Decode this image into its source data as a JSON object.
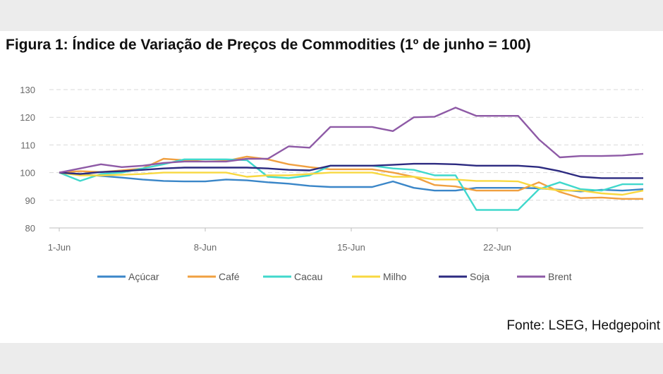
{
  "title": "Figura 1: Índice de Variação de Preços de Commodities (1º de junho = 100)",
  "source": "Fonte: LSEG, Hedgepoint",
  "chart_data": {
    "type": "line",
    "title": "Figura 1: Índice de Variação de Preços de Commodities (1º de junho = 100)",
    "xlabel": "",
    "ylabel": "",
    "ylim": [
      80,
      130
    ],
    "yticks": [
      80,
      90,
      100,
      110,
      120,
      130
    ],
    "xlim": [
      1,
      29
    ],
    "xticks": [
      {
        "x": 1,
        "label": "1-Jun"
      },
      {
        "x": 8,
        "label": "8-Jun"
      },
      {
        "x": 15,
        "label": "15-Jun"
      },
      {
        "x": 22,
        "label": "22-Jun"
      }
    ],
    "grid": "horizontal dashed",
    "legend": "bottom",
    "x": [
      1,
      2,
      3,
      4,
      5,
      6,
      7,
      8,
      9,
      10,
      11,
      12,
      13,
      14,
      15,
      16,
      17,
      18,
      19,
      20,
      21,
      22,
      23,
      24,
      25,
      26,
      27,
      28,
      29
    ],
    "series": [
      {
        "name": "Açúcar",
        "color": "#3a86c8",
        "values": [
          100,
          99.5,
          98.8,
          98.2,
          97.5,
          97.0,
          96.8,
          96.8,
          97.5,
          97.2,
          96.5,
          96.0,
          95.2,
          94.8,
          94.8,
          94.8,
          96.8,
          94.5,
          93.5,
          93.5,
          94.5,
          94.5,
          94.5,
          94.3,
          93.8,
          93.2,
          93.8,
          93.5,
          94.0
        ]
      },
      {
        "name": "Café",
        "color": "#f0a040",
        "values": [
          100,
          100.5,
          100.2,
          100.8,
          101.5,
          105.0,
          104.5,
          104.0,
          104.2,
          105.8,
          104.8,
          103.0,
          102.0,
          101.2,
          101.2,
          101.2,
          100.0,
          98.5,
          95.5,
          95.0,
          93.5,
          93.5,
          93.5,
          96.5,
          93.0,
          90.8,
          91.0,
          90.5,
          90.5
        ]
      },
      {
        "name": "Cacau",
        "color": "#40d8cc",
        "values": [
          100,
          97.0,
          99.5,
          100.0,
          101.5,
          103.0,
          104.8,
          104.8,
          104.8,
          104.5,
          98.5,
          98.0,
          99.0,
          102.5,
          102.5,
          102.5,
          101.5,
          101.0,
          99.0,
          99.0,
          86.5,
          86.5,
          86.5,
          94.0,
          96.5,
          94.0,
          93.5,
          95.8,
          95.8
        ]
      },
      {
        "name": "Milho",
        "color": "#f8d840",
        "values": [
          100,
          99.0,
          99.0,
          99.2,
          99.5,
          100.0,
          100.0,
          100.0,
          100.0,
          98.5,
          99.0,
          99.0,
          99.5,
          100.0,
          100.0,
          100.0,
          98.5,
          98.5,
          97.5,
          97.5,
          97.0,
          97.0,
          96.8,
          94.5,
          93.5,
          93.5,
          92.5,
          92.0,
          93.5
        ]
      },
      {
        "name": "Soja",
        "color": "#2c2a80",
        "values": [
          100,
          99.5,
          100.2,
          100.5,
          101.0,
          101.5,
          101.8,
          101.8,
          101.8,
          101.8,
          101.5,
          101.0,
          100.8,
          102.5,
          102.5,
          102.5,
          102.8,
          103.2,
          103.2,
          103.0,
          102.5,
          102.5,
          102.5,
          102.0,
          100.5,
          98.5,
          98.0,
          98.0,
          98.0
        ]
      },
      {
        "name": "Brent",
        "color": "#8e5aa6",
        "values": [
          100,
          101.5,
          103.0,
          102.0,
          102.5,
          103.5,
          104.0,
          104.0,
          104.0,
          105.0,
          105.0,
          109.5,
          109.0,
          116.5,
          116.5,
          116.5,
          115.0,
          120.0,
          120.2,
          123.5,
          120.5,
          120.5,
          120.5,
          112.0,
          105.5,
          106.0,
          106.0,
          106.2,
          106.8
        ]
      }
    ]
  }
}
